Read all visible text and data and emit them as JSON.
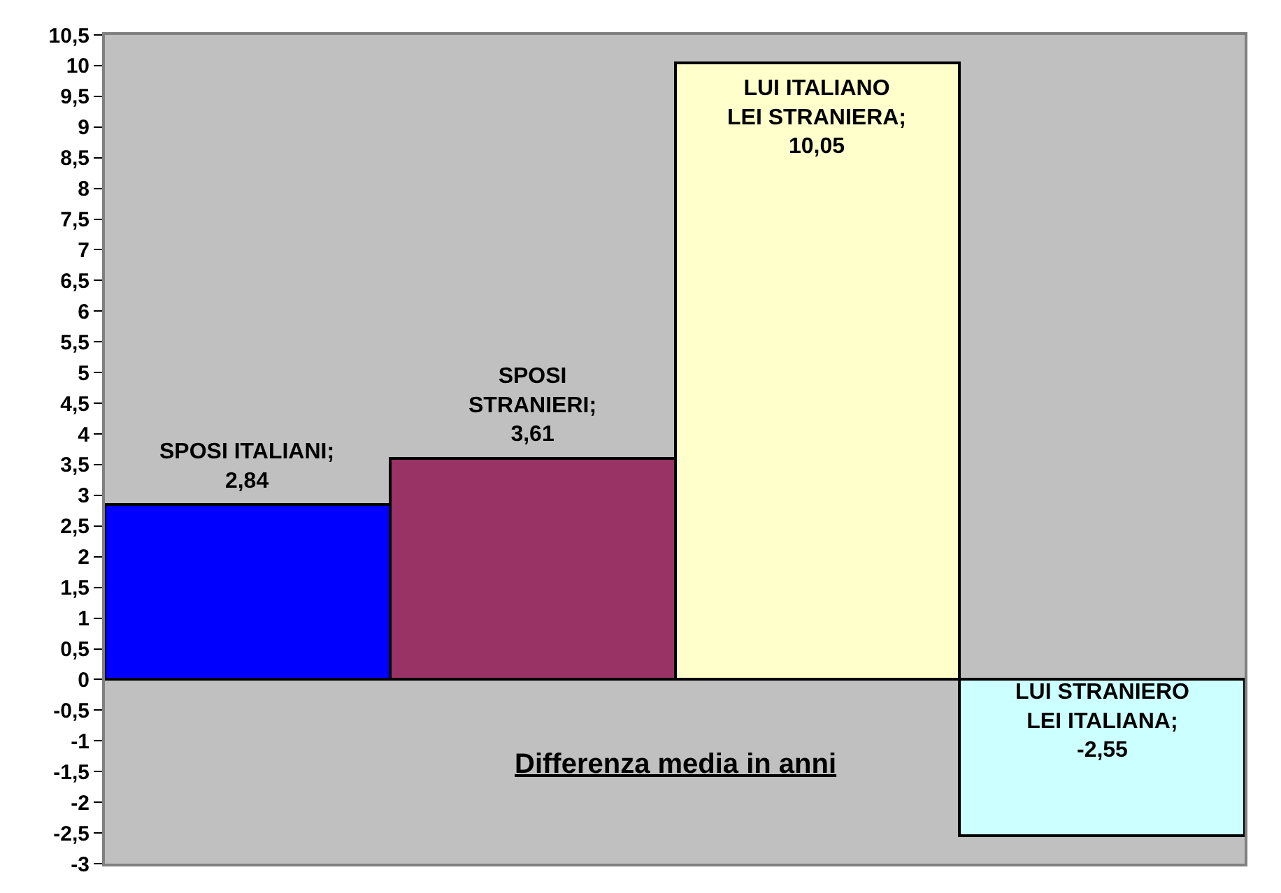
{
  "chart_data": {
    "type": "bar",
    "xlabel": "Differenza media in anni",
    "categories": [
      null,
      null,
      null,
      null
    ],
    "values": [
      2.84,
      3.61,
      10.05,
      -2.55
    ],
    "colors": [
      "#0000ff",
      "#993366",
      "#ffffcc",
      "#ccffff"
    ],
    "value_labels": [
      "SPOSI ITALIANI;\n2,84",
      "SPOSI\nSTRANIERI;\n3,61",
      "LUI ITALIANO\nLEI STRANIERA;\n10,05",
      "LUI STRANIERO\nLEI ITALIANA;\n-2,55"
    ],
    "ylim": [
      -3,
      10.5
    ],
    "yticks": [
      -3,
      {
        "value": -2.5,
        "label": "-2,5"
      },
      -2,
      {
        "value": -1.5,
        "label": "-1,5"
      },
      -1,
      {
        "value": -0.5,
        "label": "-0,5"
      },
      0,
      {
        "value": 0.5,
        "label": "0,5"
      },
      1,
      {
        "value": 1.5,
        "label": "1,5"
      },
      2,
      {
        "value": 2.5,
        "label": "2,5"
      },
      3,
      {
        "value": 3.5,
        "label": "3,5"
      },
      4,
      {
        "value": 4.5,
        "label": "4,5"
      },
      5,
      {
        "value": 5.5,
        "label": "5,5"
      },
      6,
      {
        "value": 6.5,
        "label": "6,5"
      },
      7,
      {
        "value": 7.5,
        "label": "7,5"
      },
      8,
      {
        "value": 8.5,
        "label": "8,5"
      },
      9,
      {
        "value": 9.5,
        "label": "9,5"
      },
      10,
      {
        "value": 10.5,
        "label": "10,5"
      }
    ],
    "grid": false,
    "legend": false
  }
}
